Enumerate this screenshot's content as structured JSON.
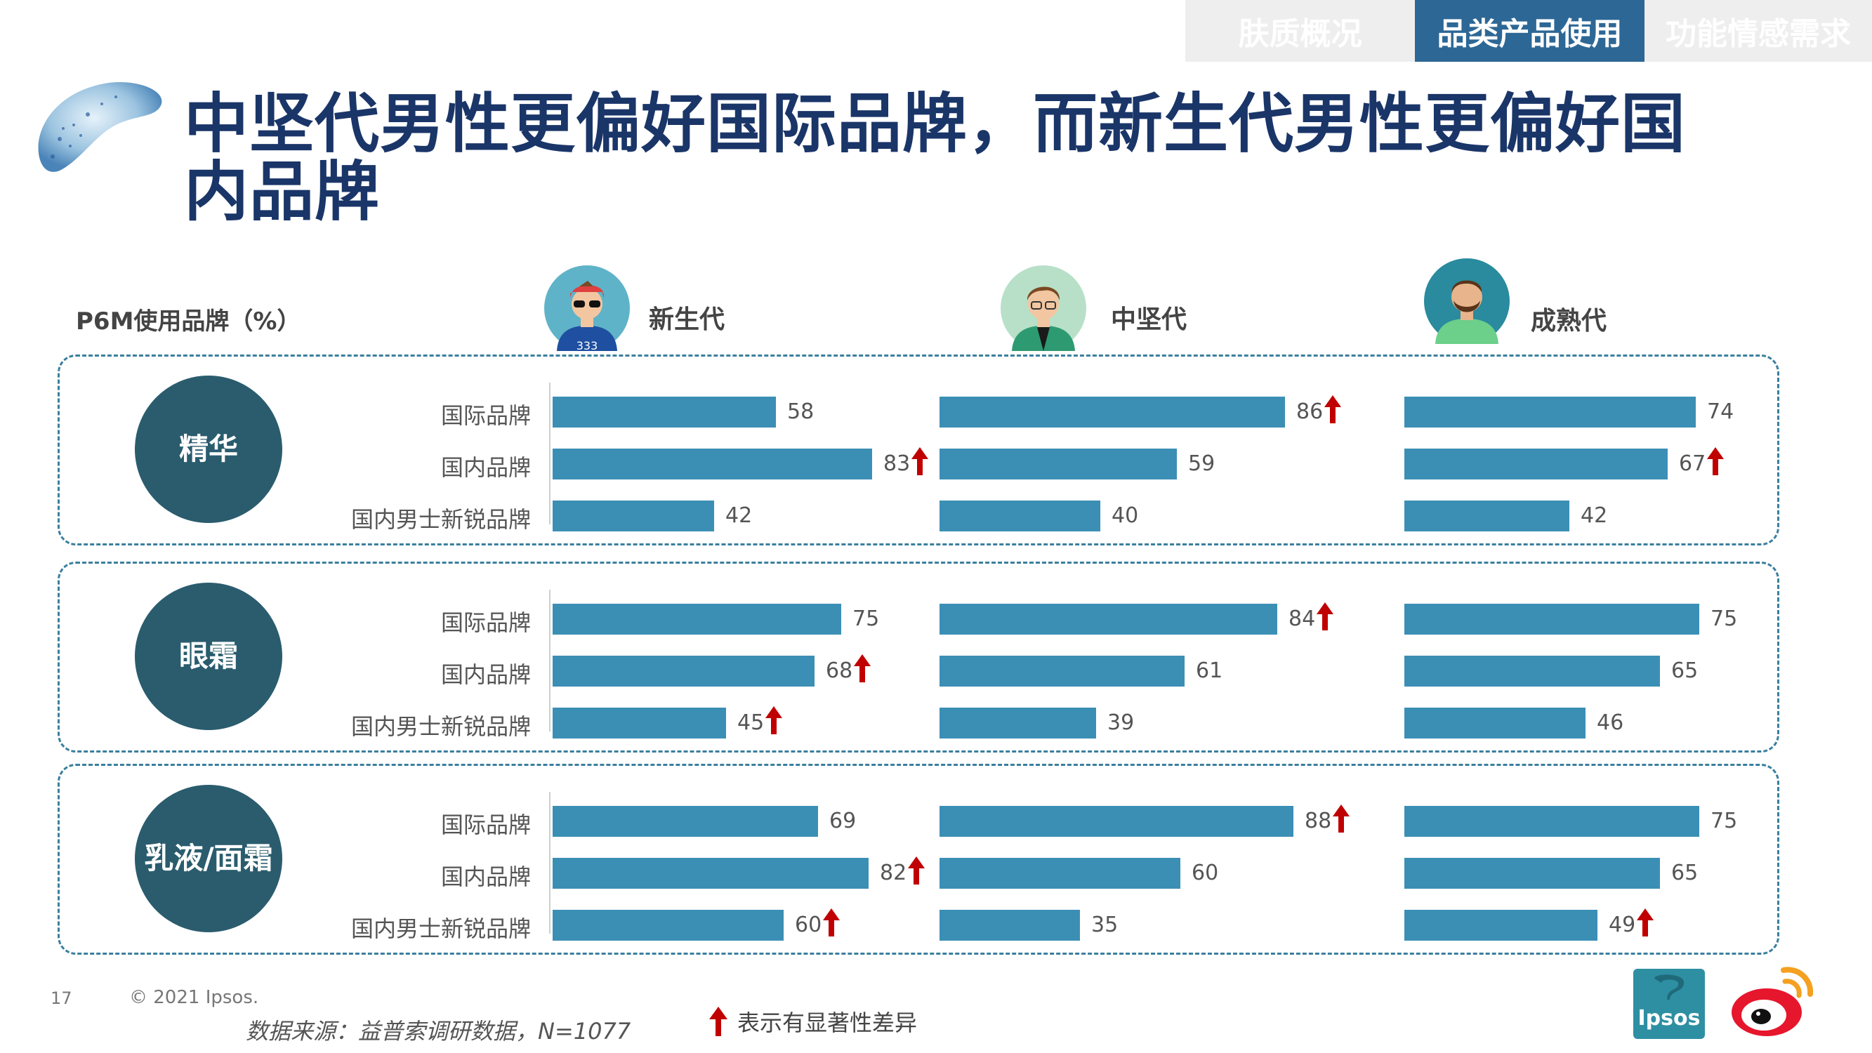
{
  "nav": {
    "tabs": [
      {
        "label": "肤质概况",
        "active": false
      },
      {
        "label": "品类产品使用",
        "active": true
      },
      {
        "label": "功能情感需求",
        "active": false
      }
    ]
  },
  "title": "中坚代男性更偏好国际品牌，而新生代男性更偏好国内品牌",
  "legend_label": "P6M使用品牌（%）",
  "generations": [
    "新生代",
    "中坚代",
    "成熟代"
  ],
  "avatar_text": "333",
  "chart_data": {
    "type": "bar",
    "orientation": "horizontal",
    "xlim": [
      0,
      100
    ],
    "unit": "%",
    "row_labels": [
      "国际品牌",
      "国内品牌",
      "国内男士新锐品牌"
    ],
    "categories": [
      {
        "name": "精华",
        "values": [
          [
            58,
            83,
            42
          ],
          [
            86,
            59,
            40
          ],
          [
            74,
            67,
            42
          ]
        ],
        "significant": [
          [
            false,
            true,
            false
          ],
          [
            true,
            false,
            false
          ],
          [
            false,
            true,
            false
          ]
        ]
      },
      {
        "name": "眼霜",
        "values": [
          [
            75,
            68,
            45
          ],
          [
            84,
            61,
            39
          ],
          [
            75,
            65,
            46
          ]
        ],
        "significant": [
          [
            false,
            true,
            true
          ],
          [
            true,
            false,
            false
          ],
          [
            false,
            false,
            false
          ]
        ]
      },
      {
        "name": "乳液/面霜",
        "values": [
          [
            69,
            82,
            60
          ],
          [
            88,
            60,
            35
          ],
          [
            75,
            65,
            49
          ]
        ],
        "significant": [
          [
            false,
            true,
            true
          ],
          [
            true,
            false,
            false
          ],
          [
            false,
            false,
            true
          ]
        ]
      }
    ],
    "colors": {
      "bar": "#3b8fb5",
      "significance_arrow": "#c00000",
      "circle": "#2a5c6e"
    }
  },
  "footer": {
    "page_number": "17",
    "copyright": "© 2021 Ipsos.",
    "source": "数据来源：益普索调研数据，N=1077",
    "significance_legend": "表示有显著性差异"
  },
  "logos": {
    "ipsos_text": "Ipsos"
  }
}
